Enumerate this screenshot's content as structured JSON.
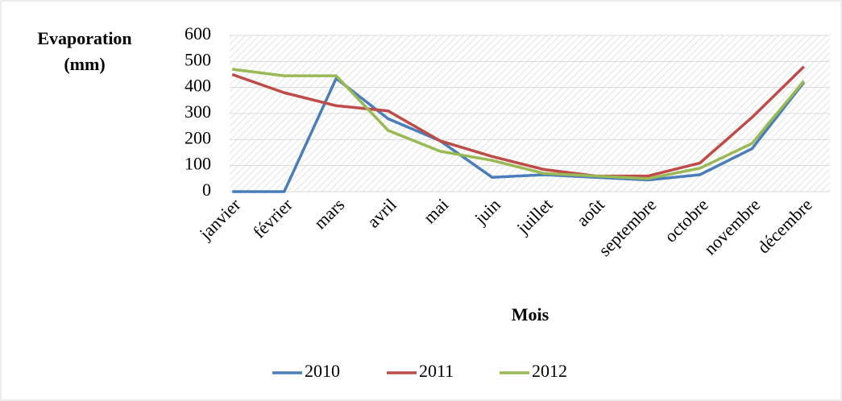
{
  "chart_data": {
    "type": "line",
    "y_label_lines": [
      "Evaporation",
      "(mm)"
    ],
    "x_label": "Mois",
    "categories": [
      "janvier",
      "février",
      "mars",
      "avril",
      "mai",
      "juin",
      "juillet",
      "août",
      "septembre",
      "octobre",
      "novembre",
      "décembre"
    ],
    "series": [
      {
        "name": "2010",
        "color": "#4a7ebb",
        "values": [
          0,
          0,
          435,
          280,
          195,
          55,
          65,
          55,
          45,
          65,
          165,
          420
        ]
      },
      {
        "name": "2011",
        "color": "#be4b48",
        "values": [
          450,
          380,
          330,
          310,
          195,
          135,
          85,
          60,
          60,
          110,
          285,
          480
        ]
      },
      {
        "name": "2012",
        "color": "#98b954",
        "values": [
          470,
          445,
          445,
          235,
          155,
          120,
          70,
          60,
          50,
          90,
          185,
          425
        ]
      }
    ],
    "ylim": [
      0,
      600
    ],
    "yticks": [
      0,
      100,
      200,
      300,
      400,
      500,
      600
    ],
    "grid": true,
    "legend": "bottom"
  }
}
